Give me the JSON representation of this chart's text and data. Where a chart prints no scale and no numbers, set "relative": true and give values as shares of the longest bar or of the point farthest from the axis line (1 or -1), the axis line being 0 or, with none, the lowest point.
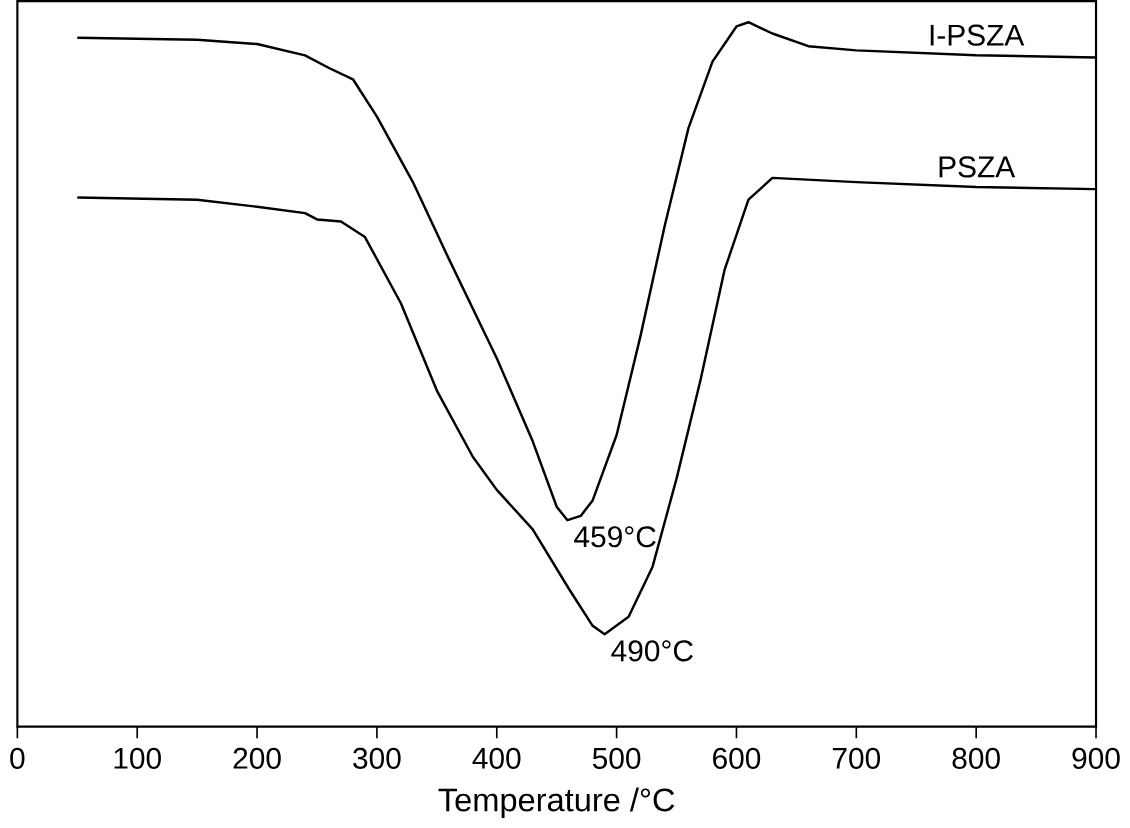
{
  "chart_data": {
    "type": "line",
    "relative": true,
    "xlabel": "Temperature /°C",
    "xlim": [
      0,
      900
    ],
    "xticks": [
      0,
      100,
      200,
      300,
      400,
      500,
      600,
      700,
      800,
      900
    ],
    "tick_labels": "x",
    "grid": false,
    "legend": false,
    "marker": "none",
    "line_style": "solid",
    "series": [
      {
        "name": "I-PSZA",
        "color": "#000000",
        "x": [
          50,
          150,
          200,
          240,
          260,
          280,
          300,
          330,
          360,
          400,
          430,
          450,
          459,
          470,
          480,
          500,
          520,
          540,
          560,
          580,
          600,
          610,
          630,
          660,
          700,
          800,
          900
        ],
        "values": [
          0.978,
          0.975,
          0.969,
          0.953,
          0.935,
          0.919,
          0.866,
          0.773,
          0.664,
          0.523,
          0.405,
          0.312,
          0.293,
          0.299,
          0.321,
          0.414,
          0.555,
          0.71,
          0.85,
          0.944,
          0.994,
          1.0,
          0.984,
          0.966,
          0.96,
          0.953,
          0.95
        ]
      },
      {
        "name": "PSZA",
        "color": "#000000",
        "x": [
          50,
          150,
          200,
          240,
          250,
          270,
          290,
          320,
          350,
          380,
          400,
          430,
          460,
          480,
          490,
          510,
          530,
          550,
          570,
          590,
          610,
          630,
          700,
          800,
          900
        ],
        "values": [
          0.751,
          0.748,
          0.738,
          0.729,
          0.72,
          0.717,
          0.695,
          0.601,
          0.477,
          0.383,
          0.336,
          0.28,
          0.196,
          0.143,
          0.131,
          0.156,
          0.227,
          0.352,
          0.492,
          0.648,
          0.748,
          0.779,
          0.773,
          0.766,
          0.763
        ]
      }
    ],
    "annotations": [
      {
        "text": "459°C",
        "x": 459,
        "y": 0.293
      },
      {
        "text": "490°C",
        "x": 490,
        "y": 0.131
      }
    ]
  }
}
